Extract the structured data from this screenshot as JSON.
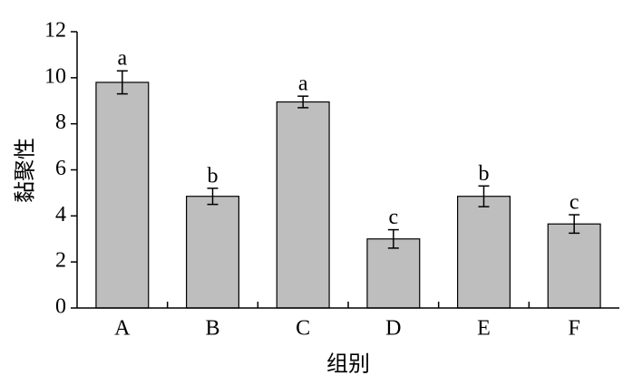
{
  "chart_data": {
    "type": "bar",
    "x_label": "组别",
    "y_label": "黏聚性",
    "categories": [
      "A",
      "B",
      "C",
      "D",
      "E",
      "F"
    ],
    "values": [
      9.8,
      4.85,
      8.95,
      3.0,
      4.85,
      3.65
    ],
    "errors": [
      0.5,
      0.35,
      0.25,
      0.4,
      0.45,
      0.4
    ],
    "significance": [
      "a",
      "b",
      "a",
      "c",
      "b",
      "c"
    ],
    "color": "#bebebe",
    "ylim": [
      0,
      12
    ],
    "yticks": [
      0,
      2,
      4,
      6,
      8,
      10,
      12
    ],
    "grid": false
  }
}
